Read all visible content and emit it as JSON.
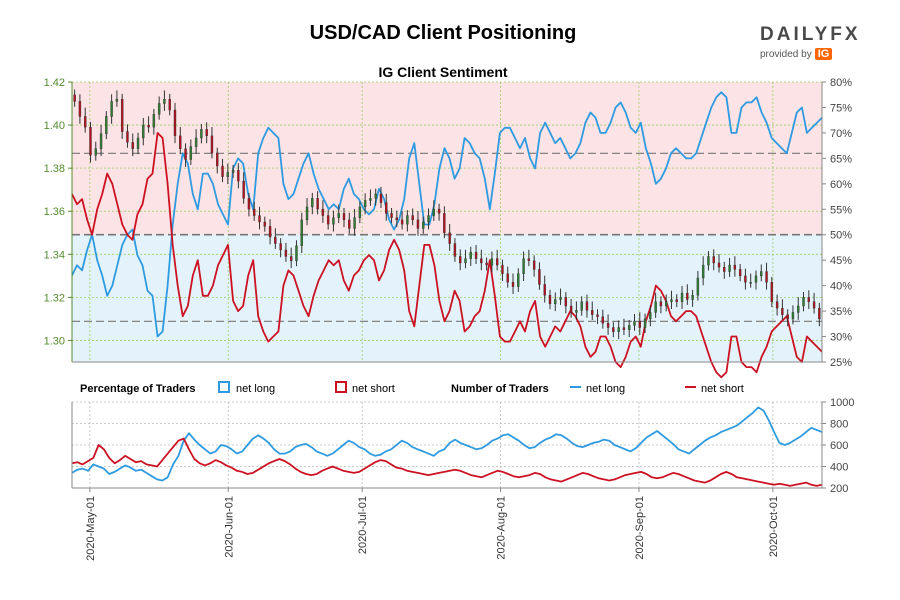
{
  "title": "USD/CAD Client Positioning",
  "subtitle": "IG Client Sentiment",
  "logo": {
    "brand_a": "DAILY",
    "brand_b": "FX",
    "provided_by": "provided by",
    "ig": "IG"
  },
  "colors": {
    "long": "#2e9be0",
    "short": "#cc1122",
    "up": "#2f7d32",
    "down": "#b3121f",
    "long_fill": "#e4f3fb",
    "short_fill": "#fbe3e6",
    "neutral": "#555555"
  },
  "chart_data": [
    {
      "type": "candlestick",
      "name": "price",
      "left_axis": {
        "ticks": [
          "1.42",
          "1.40",
          "1.38",
          "1.36",
          "1.34",
          "1.32",
          "1.30"
        ],
        "ylim": [
          1.29,
          1.42
        ]
      },
      "right_axis": {
        "ticks": [
          "80%",
          "75%",
          "70%",
          "65%",
          "60%",
          "55%",
          "50%",
          "45%",
          "40%",
          "35%",
          "30%",
          "25%"
        ],
        "ylim": [
          25,
          80
        ]
      },
      "reference_lines_pct": [
        66,
        50,
        33
      ],
      "x_range_days": [
        0,
        168
      ],
      "ohlc_daily_close": [
        1.411,
        1.404,
        1.399,
        1.386,
        1.389,
        1.396,
        1.404,
        1.411,
        1.412,
        1.397,
        1.392,
        1.389,
        1.394,
        1.4,
        1.399,
        1.405,
        1.41,
        1.412,
        1.407,
        1.395,
        1.389,
        1.384,
        1.39,
        1.394,
        1.398,
        1.395,
        1.387,
        1.381,
        1.376,
        1.378,
        1.379,
        1.374,
        1.366,
        1.361,
        1.358,
        1.355,
        1.353,
        1.348,
        1.345,
        1.342,
        1.339,
        1.337,
        1.344,
        1.356,
        1.362,
        1.366,
        1.361,
        1.358,
        1.354,
        1.357,
        1.359,
        1.356,
        1.352,
        1.357,
        1.362,
        1.365,
        1.366,
        1.368,
        1.364,
        1.359,
        1.357,
        1.356,
        1.354,
        1.358,
        1.356,
        1.352,
        1.355,
        1.358,
        1.361,
        1.359,
        1.35,
        1.345,
        1.339,
        1.336,
        1.338,
        1.341,
        1.338,
        1.336,
        1.335,
        1.338,
        1.335,
        1.331,
        1.327,
        1.325,
        1.331,
        1.338,
        1.337,
        1.333,
        1.326,
        1.321,
        1.317,
        1.319,
        1.32,
        1.316,
        1.313,
        1.314,
        1.318,
        1.314,
        1.312,
        1.311,
        1.308,
        1.306,
        1.304,
        1.306,
        1.305,
        1.307,
        1.309,
        1.306,
        1.31,
        1.313,
        1.318,
        1.316,
        1.318,
        1.319,
        1.318,
        1.322,
        1.319,
        1.321,
        1.329,
        1.335,
        1.339,
        1.336,
        1.334,
        1.332,
        1.335,
        1.333,
        1.33,
        1.327,
        1.327,
        1.33,
        1.332,
        1.327,
        1.318,
        1.315,
        1.312,
        1.31,
        1.313,
        1.316,
        1.32,
        1.318,
        1.315,
        1.31
      ]
    },
    {
      "type": "line",
      "name": "percentage_of_traders",
      "legend_title": "Percentage of Traders",
      "series": [
        {
          "name": "net long",
          "values_pct": [
            42,
            44,
            43,
            47,
            50,
            45,
            42,
            38,
            40,
            44,
            48,
            50,
            51,
            46,
            44,
            39,
            38,
            30,
            31,
            40,
            52,
            60,
            66,
            64,
            58,
            55,
            62,
            62,
            60,
            56,
            54,
            52,
            63,
            65,
            64,
            58,
            55,
            66,
            69,
            71,
            70,
            69,
            60,
            57,
            58,
            61,
            64,
            66,
            62,
            59,
            57,
            55,
            56,
            55,
            59,
            61,
            58,
            57,
            55,
            54,
            55,
            59,
            57,
            53,
            51,
            53,
            57,
            65,
            68,
            60,
            52,
            52,
            56,
            63,
            67,
            65,
            61,
            63,
            69,
            68,
            66,
            65,
            61,
            55,
            62,
            70,
            71,
            71,
            69,
            67,
            69,
            65,
            63,
            70,
            72,
            70,
            68,
            69,
            67,
            65,
            66,
            68,
            72,
            74,
            73,
            70,
            70,
            72,
            75,
            76,
            74,
            71,
            70,
            72,
            67,
            64,
            60,
            61,
            63,
            66,
            67,
            66,
            65,
            65,
            66,
            69,
            72,
            75,
            77,
            78,
            77,
            70,
            70,
            75,
            76,
            76,
            77,
            74,
            72,
            69,
            68,
            67,
            66,
            70,
            74,
            75,
            70,
            71,
            72,
            73
          ]
        },
        {
          "name": "net short",
          "values_pct": [
            58,
            56,
            57,
            53,
            50,
            55,
            58,
            62,
            60,
            56,
            52,
            50,
            49,
            54,
            56,
            61,
            62,
            70,
            69,
            60,
            48,
            40,
            34,
            36,
            42,
            45,
            38,
            38,
            40,
            44,
            46,
            48,
            37,
            35,
            36,
            42,
            45,
            34,
            31,
            29,
            30,
            31,
            40,
            43,
            42,
            39,
            36,
            34,
            38,
            41,
            43,
            45,
            44,
            45,
            41,
            39,
            42,
            43,
            45,
            46,
            45,
            41,
            43,
            47,
            49,
            47,
            43,
            35,
            32,
            40,
            48,
            48,
            44,
            37,
            33,
            35,
            39,
            37,
            31,
            32,
            34,
            35,
            39,
            45,
            38,
            30,
            29,
            29,
            31,
            33,
            31,
            35,
            37,
            30,
            28,
            30,
            32,
            31,
            33,
            35,
            34,
            32,
            28,
            26,
            27,
            30,
            30,
            28,
            25,
            24,
            26,
            29,
            30,
            28,
            33,
            36,
            40,
            39,
            37,
            34,
            33,
            34,
            35,
            35,
            34,
            31,
            28,
            25,
            23,
            22,
            23,
            30,
            30,
            25,
            24,
            24,
            23,
            26,
            28,
            31,
            32,
            33,
            34,
            30,
            26,
            25,
            30,
            29,
            28,
            27
          ]
        }
      ]
    },
    {
      "type": "line",
      "name": "number_of_traders",
      "legend_title": "Number of Traders",
      "axis": {
        "ticks": [
          "1000",
          "800",
          "600",
          "400",
          "200"
        ],
        "ylim": [
          200,
          1000
        ]
      },
      "series": [
        {
          "name": "net long",
          "values": [
            340,
            370,
            380,
            360,
            420,
            400,
            380,
            330,
            350,
            380,
            410,
            390,
            360,
            370,
            340,
            310,
            280,
            270,
            300,
            420,
            500,
            640,
            710,
            650,
            600,
            560,
            520,
            540,
            600,
            590,
            560,
            520,
            540,
            600,
            660,
            690,
            660,
            620,
            560,
            520,
            520,
            540,
            580,
            600,
            610,
            580,
            540,
            520,
            500,
            520,
            560,
            600,
            640,
            620,
            580,
            560,
            520,
            500,
            510,
            540,
            560,
            600,
            640,
            620,
            580,
            560,
            540,
            520,
            500,
            540,
            560,
            620,
            650,
            620,
            600,
            580,
            560,
            570,
            600,
            640,
            660,
            690,
            700,
            670,
            640,
            600,
            570,
            580,
            620,
            650,
            670,
            700,
            690,
            660,
            620,
            590,
            580,
            600,
            620,
            630,
            650,
            640,
            600,
            580,
            560,
            540,
            570,
            620,
            670,
            700,
            730,
            690,
            650,
            610,
            560,
            540,
            520,
            560,
            600,
            640,
            670,
            690,
            720,
            740,
            760,
            780,
            820,
            860,
            900,
            950,
            920,
            830,
            720,
            620,
            600,
            620,
            650,
            680,
            720,
            760,
            740,
            720
          ]
        },
        {
          "name": "net short",
          "values": [
            430,
            440,
            420,
            450,
            480,
            600,
            560,
            480,
            430,
            460,
            500,
            470,
            440,
            450,
            420,
            410,
            400,
            460,
            520,
            580,
            640,
            660,
            560,
            470,
            430,
            410,
            430,
            460,
            440,
            410,
            390,
            360,
            350,
            330,
            340,
            370,
            400,
            430,
            450,
            470,
            450,
            420,
            380,
            350,
            330,
            320,
            330,
            360,
            380,
            400,
            380,
            360,
            350,
            340,
            350,
            380,
            410,
            440,
            460,
            450,
            420,
            390,
            380,
            360,
            350,
            340,
            330,
            320,
            330,
            340,
            350,
            360,
            370,
            360,
            340,
            320,
            310,
            300,
            320,
            340,
            360,
            350,
            330,
            310,
            300,
            310,
            320,
            340,
            330,
            300,
            280,
            270,
            260,
            280,
            300,
            320,
            340,
            330,
            310,
            290,
            280,
            270,
            280,
            300,
            320,
            330,
            340,
            350,
            330,
            300,
            290,
            300,
            320,
            340,
            330,
            310,
            290,
            270,
            260,
            250,
            270,
            300,
            330,
            350,
            330,
            300,
            290,
            280,
            270,
            260,
            250,
            240,
            230,
            240,
            230,
            220,
            230,
            240,
            250,
            230,
            220,
            230
          ]
        }
      ]
    }
  ],
  "legend": {
    "percentage_title": "Percentage of Traders",
    "number_title": "Number of Traders",
    "net_long": "net long",
    "net_short": "net short"
  },
  "x_axis": {
    "ticks": [
      "2020-May-01",
      "2020-Jun-01",
      "2020-Jul-01",
      "2020-Aug-01",
      "2020-Sep-01",
      "2020-Oct-01"
    ]
  }
}
